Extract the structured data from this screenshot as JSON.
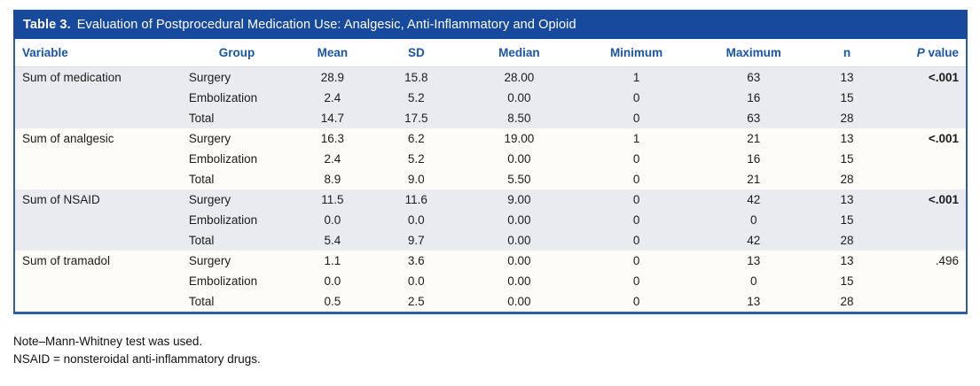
{
  "colors": {
    "title_bar_bg": "#17499c",
    "header_text": "#1c55a5",
    "border": "#2e5da6",
    "shaded_row": "#e9ebee",
    "unshaded_row": "#fdfcf6"
  },
  "table": {
    "label": "Table 3.",
    "title": "Evaluation of Postprocedural Medication Use: Analgesic, Anti-Inflammatory and Opioid",
    "columns": [
      "Variable",
      "Group",
      "Mean",
      "SD",
      "Median",
      "Minimum",
      "Maximum",
      "n"
    ],
    "p_header": {
      "italic": "P",
      "rest": "value"
    },
    "groups": [
      {
        "variable": "Sum of medication",
        "p_value": "<.001",
        "p_bold": true,
        "rows": [
          {
            "group": "Surgery",
            "mean": "28.9",
            "sd": "15.8",
            "median": "28.00",
            "min": "1",
            "max": "63",
            "n": "13"
          },
          {
            "group": "Embolization",
            "mean": "2.4",
            "sd": "5.2",
            "median": "0.00",
            "min": "0",
            "max": "16",
            "n": "15"
          },
          {
            "group": "Total",
            "mean": "14.7",
            "sd": "17.5",
            "median": "8.50",
            "min": "0",
            "max": "63",
            "n": "28"
          }
        ]
      },
      {
        "variable": "Sum of analgesic",
        "p_value": "<.001",
        "p_bold": true,
        "rows": [
          {
            "group": "Surgery",
            "mean": "16.3",
            "sd": "6.2",
            "median": "19.00",
            "min": "1",
            "max": "21",
            "n": "13"
          },
          {
            "group": "Embolization",
            "mean": "2.4",
            "sd": "5.2",
            "median": "0.00",
            "min": "0",
            "max": "16",
            "n": "15"
          },
          {
            "group": "Total",
            "mean": "8.9",
            "sd": "9.0",
            "median": "5.50",
            "min": "0",
            "max": "21",
            "n": "28"
          }
        ]
      },
      {
        "variable": "Sum of NSAID",
        "p_value": "<.001",
        "p_bold": true,
        "rows": [
          {
            "group": "Surgery",
            "mean": "11.5",
            "sd": "11.6",
            "median": "9.00",
            "min": "0",
            "max": "42",
            "n": "13"
          },
          {
            "group": "Embolization",
            "mean": "0.0",
            "sd": "0.0",
            "median": "0.00",
            "min": "0",
            "max": "0",
            "n": "15"
          },
          {
            "group": "Total",
            "mean": "5.4",
            "sd": "9.7",
            "median": "0.00",
            "min": "0",
            "max": "42",
            "n": "28"
          }
        ]
      },
      {
        "variable": "Sum of tramadol",
        "p_value": ".496",
        "p_bold": false,
        "rows": [
          {
            "group": "Surgery",
            "mean": "1.1",
            "sd": "3.6",
            "median": "0.00",
            "min": "0",
            "max": "13",
            "n": "13"
          },
          {
            "group": "Embolization",
            "mean": "0.0",
            "sd": "0.0",
            "median": "0.00",
            "min": "0",
            "max": "0",
            "n": "15"
          },
          {
            "group": "Total",
            "mean": "0.5",
            "sd": "2.5",
            "median": "0.00",
            "min": "0",
            "max": "13",
            "n": "28"
          }
        ]
      }
    ],
    "notes": [
      "Note–Mann-Whitney test was used.",
      "NSAID = nonsteroidal anti-inflammatory drugs."
    ]
  }
}
